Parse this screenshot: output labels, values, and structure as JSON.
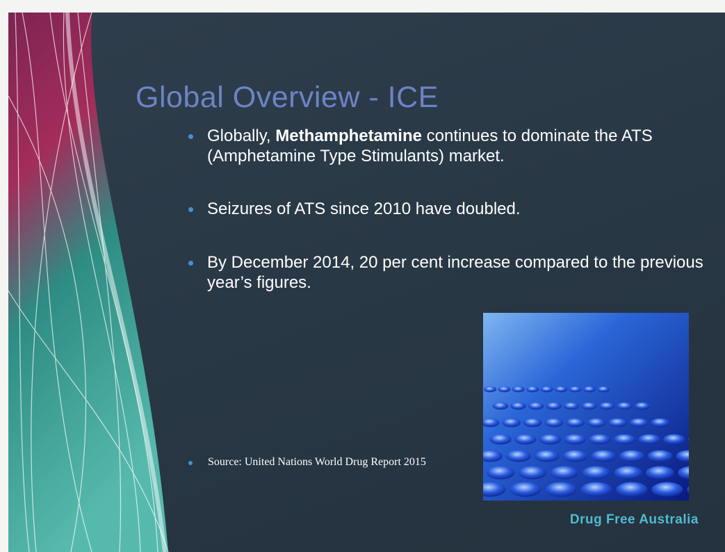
{
  "slide": {
    "title": "Global Overview - ICE",
    "bullets": [
      {
        "before": "Globally,",
        "bold": "Methamphetamine",
        "after": "continues to dominate the ATS (Amphetamine Type Stimulants) market."
      },
      {
        "text": "Seizures of ATS since 2010 have doubled."
      },
      {
        "text": "By December 2014, 20 per cent increase compared to the previous year’s figures."
      }
    ],
    "source": "Source:  United Nations World Drug Report 2015",
    "brand": "Drug Free Australia"
  }
}
